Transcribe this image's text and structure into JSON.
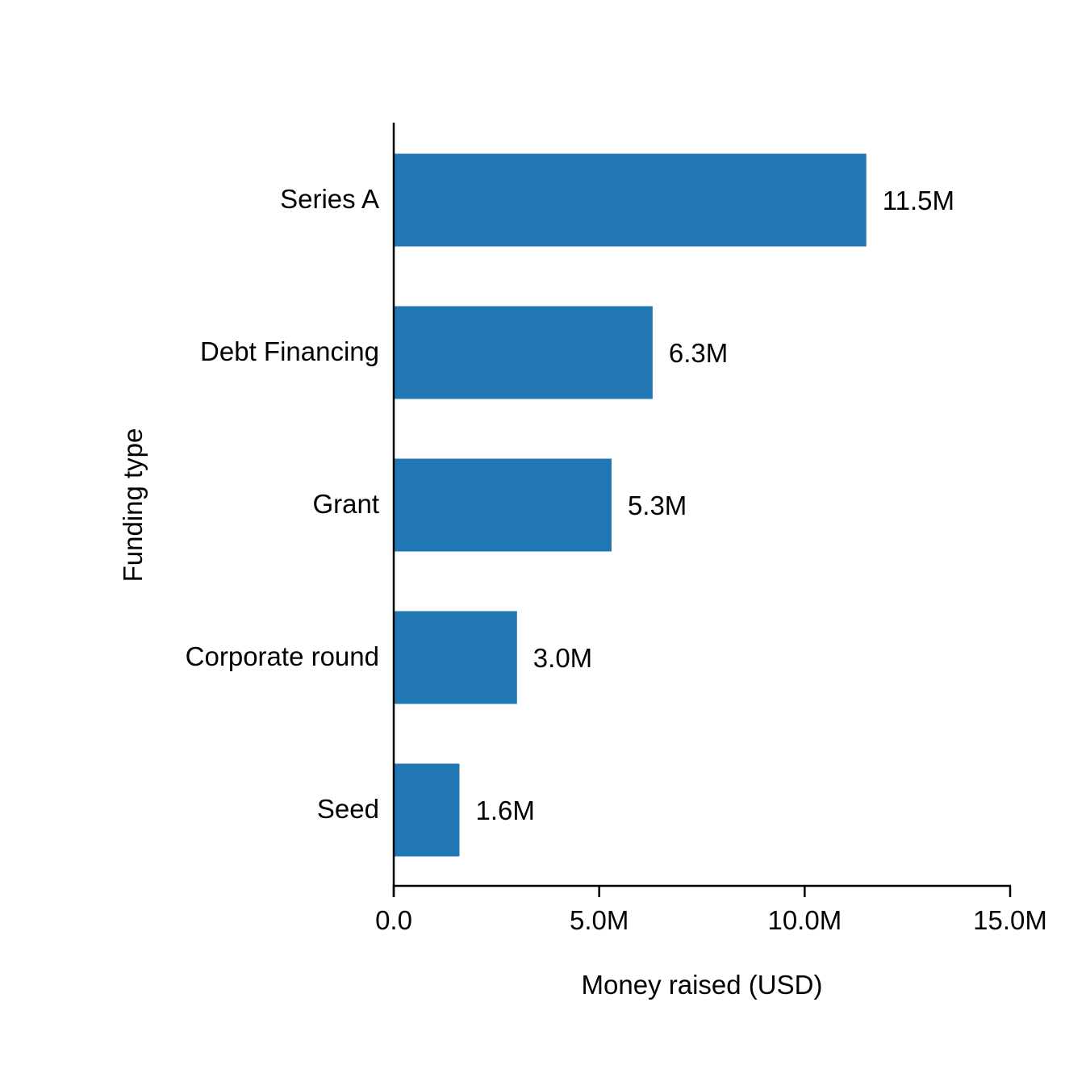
{
  "chart_data": {
    "type": "bar",
    "orientation": "horizontal",
    "title": "",
    "xlabel": "Money raised (USD)",
    "ylabel": "Funding type",
    "categories": [
      "Series A",
      "Debt Financing",
      "Grant",
      "Corporate round",
      "Seed"
    ],
    "values": [
      11.5,
      6.3,
      5.3,
      3.0,
      1.6
    ],
    "value_unit": "M USD",
    "data_labels": [
      "11.5M",
      "6.3M",
      "5.3M",
      "3.0M",
      "1.6M"
    ],
    "xlim": [
      0,
      15
    ],
    "xticks": [
      0,
      5,
      10,
      15
    ],
    "xtick_labels": [
      "0.0",
      "5.0M",
      "10.0M",
      "15.0M"
    ],
    "grid": false,
    "legend": "none",
    "bar_color": "#2077b4",
    "axis_color": "#000000"
  }
}
